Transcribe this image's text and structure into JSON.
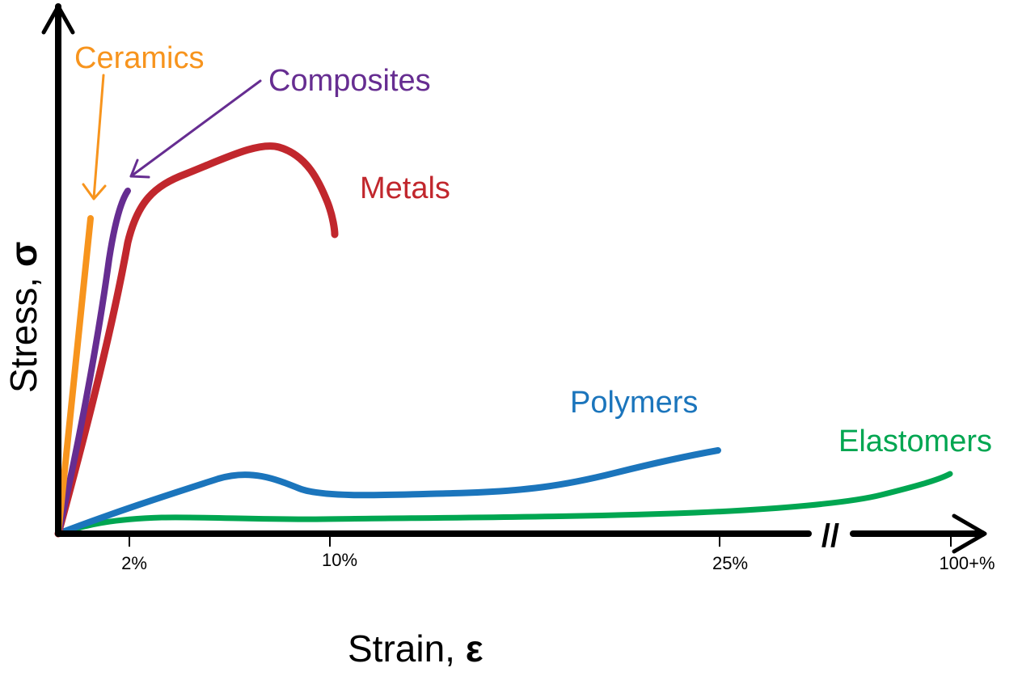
{
  "chart_data": {
    "type": "line",
    "xlabel": "Strain, ",
    "xlabel_symbol": "ε",
    "ylabel": "Stress, ",
    "ylabel_symbol": "σ",
    "x_ticks": [
      "2%",
      "10%",
      "25%",
      "100+%"
    ],
    "axis_break": "//",
    "legend": "none",
    "grid": false,
    "series": [
      {
        "name": "Ceramics",
        "color": "#F7941D"
      },
      {
        "name": "Composites",
        "color": "#662D91"
      },
      {
        "name": "Metals",
        "color": "#C1272D"
      },
      {
        "name": "Polymers",
        "color": "#1B75BC"
      },
      {
        "name": "Elastomers",
        "color": "#00A651"
      }
    ]
  }
}
